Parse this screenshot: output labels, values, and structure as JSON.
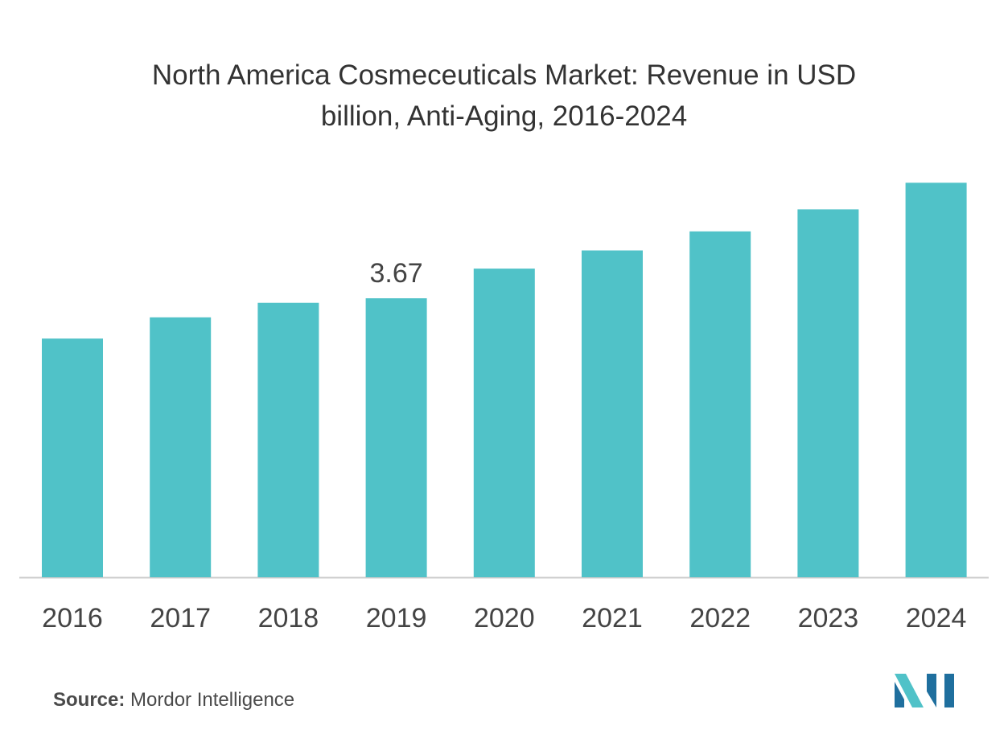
{
  "chart_data": {
    "type": "bar",
    "title_line1": "North America Cosmeceuticals Market: Revenue in USD",
    "title_line2": "billion, Anti-Aging, 2016-2024",
    "categories": [
      "2016",
      "2017",
      "2018",
      "2019",
      "2020",
      "2021",
      "2022",
      "2023",
      "2024"
    ],
    "values": [
      3.14,
      3.42,
      3.61,
      3.67,
      4.06,
      4.3,
      4.55,
      4.84,
      5.19
    ],
    "labeled_index": 3,
    "data_label": "3.67",
    "ylim": [
      0,
      5.5
    ],
    "bar_color": "#50c2c8",
    "axis_color": "#cccccc",
    "grid": false
  },
  "source": {
    "label": "Source:",
    "text": "Mordor Intelligence"
  },
  "colors": {
    "logo_dark": "#1f6f9e",
    "logo_light": "#50c2c8"
  }
}
